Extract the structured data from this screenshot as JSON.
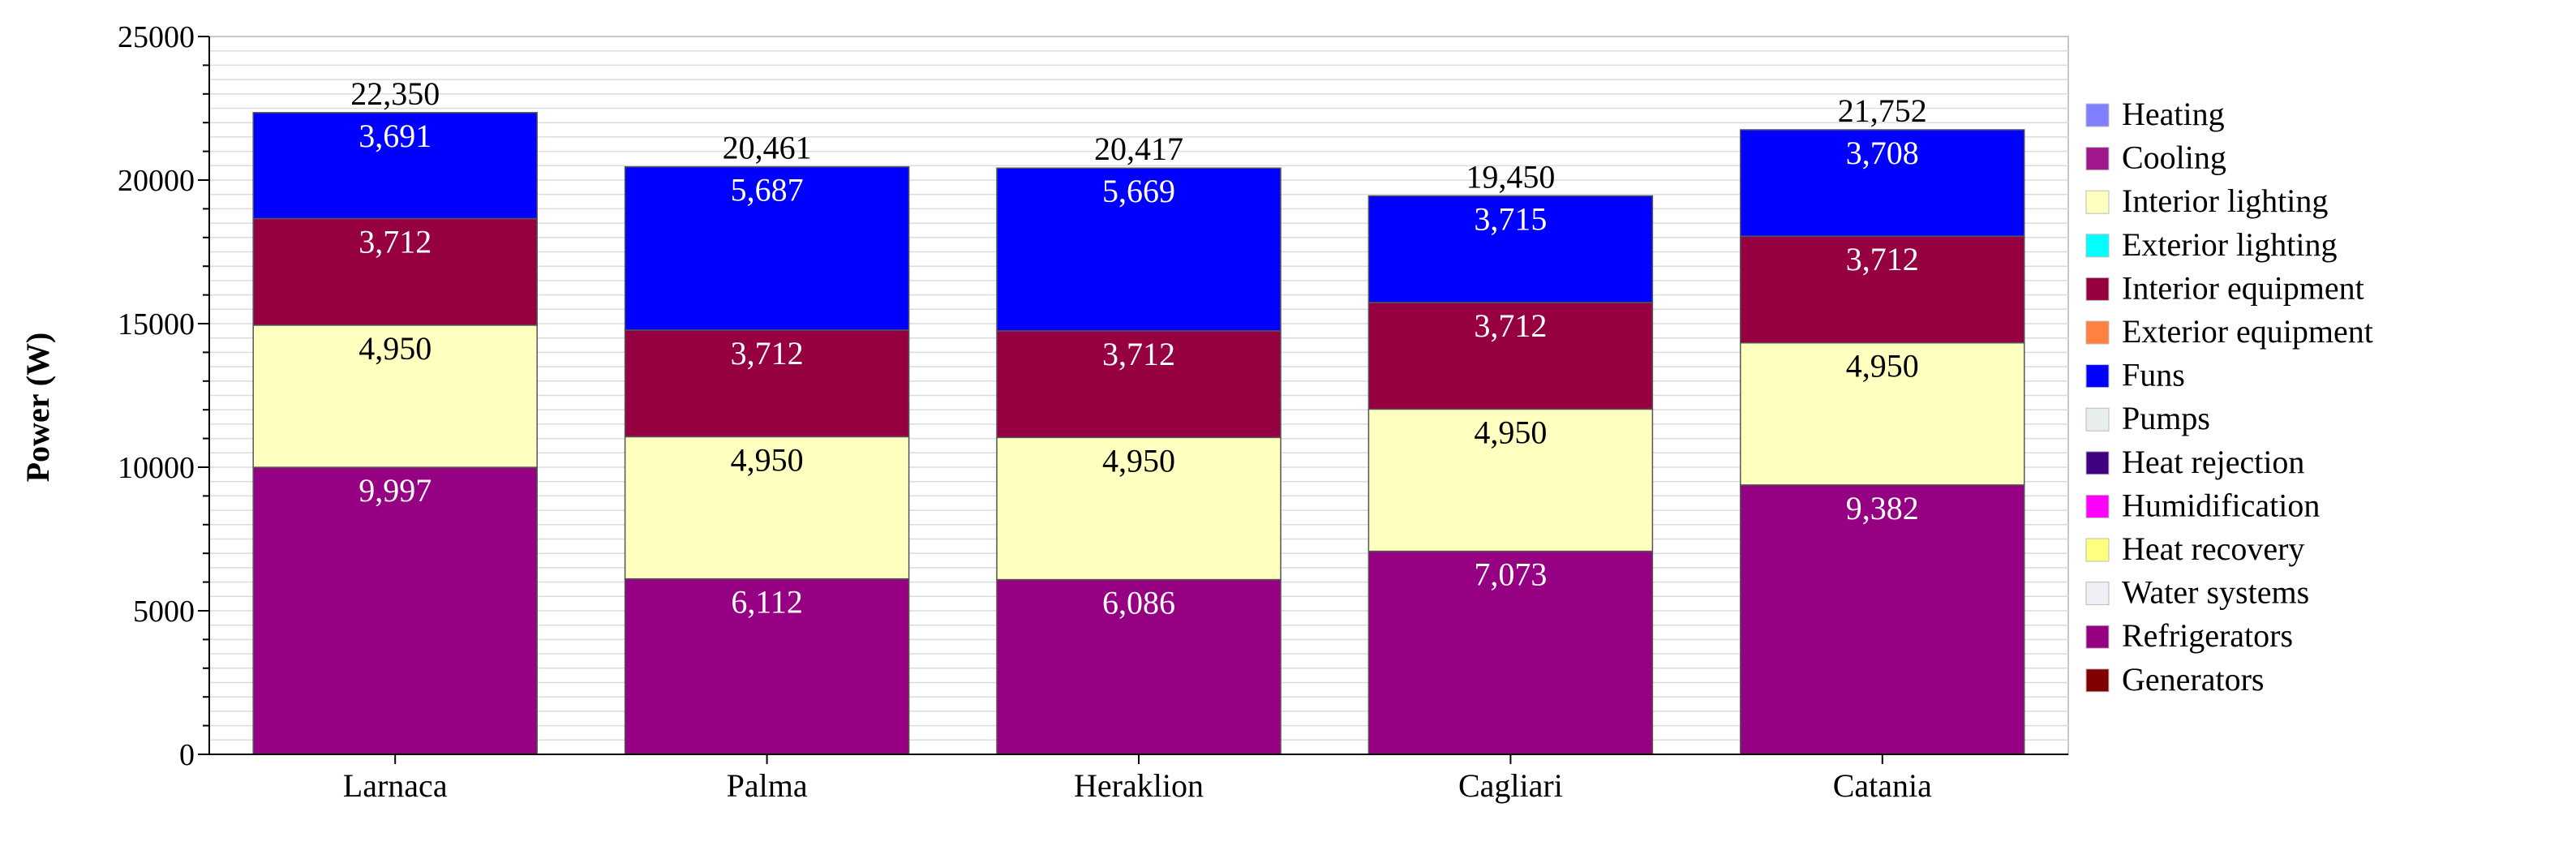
{
  "chart_data": {
    "type": "bar",
    "stacked": true,
    "ylabel": "Power (W)",
    "ylim": [
      0,
      25000
    ],
    "y_ticks": [
      "0",
      "5000",
      "10000",
      "15000",
      "20000",
      "25000"
    ],
    "grid": true,
    "legend_position": "right",
    "categories": [
      "Larnaca",
      "Palma",
      "Heraklion",
      "Cagliari",
      "Catania"
    ],
    "totals": [
      "22,350",
      "20,461",
      "20,417",
      "19,450",
      "21,752"
    ],
    "series": [
      {
        "name": "Refrigerators",
        "color": "#960082",
        "label_color": "#ffffff",
        "values": [
          9997,
          6112,
          6086,
          7073,
          9382
        ],
        "labels": [
          "9,997",
          "6,112",
          "6,086",
          "7,073",
          "9,382"
        ]
      },
      {
        "name": "Interior lighting",
        "color": "#ffffc0",
        "label_color": "#000000",
        "values": [
          4950,
          4950,
          4950,
          4950,
          4950
        ],
        "labels": [
          "4,950",
          "4,950",
          "4,950",
          "4,950",
          "4,950"
        ]
      },
      {
        "name": "Interior equipment",
        "color": "#960041",
        "label_color": "#ffffff",
        "values": [
          3712,
          3712,
          3712,
          3712,
          3712
        ],
        "labels": [
          "3,712",
          "3,712",
          "3,712",
          "3,712",
          "3,712"
        ]
      },
      {
        "name": "Funs",
        "color": "#0000ff",
        "label_color": "#ffffff",
        "values": [
          3691,
          5687,
          5669,
          3715,
          3708
        ],
        "labels": [
          "3,691",
          "5,687",
          "5,669",
          "3,715",
          "3,708"
        ]
      }
    ],
    "legend": [
      {
        "name": "Heating",
        "color": "#8080ff"
      },
      {
        "name": "Cooling",
        "color": "#a0188c"
      },
      {
        "name": "Interior lighting",
        "color": "#ffffc0"
      },
      {
        "name": "Exterior lighting",
        "color": "#00ffff"
      },
      {
        "name": "Interior equipment",
        "color": "#960041"
      },
      {
        "name": "Exterior equipment",
        "color": "#ff8040"
      },
      {
        "name": "Funs",
        "color": "#0000ff"
      },
      {
        "name": "Pumps",
        "color": "#e8eeee"
      },
      {
        "name": "Heat rejection",
        "color": "#400080"
      },
      {
        "name": "Humidification",
        "color": "#ff00ff"
      },
      {
        "name": "Heat recovery",
        "color": "#ffff80"
      },
      {
        "name": "Water systems",
        "color": "#eeeef4"
      },
      {
        "name": "Refrigerators",
        "color": "#960082"
      },
      {
        "name": "Generators",
        "color": "#800000"
      }
    ]
  }
}
